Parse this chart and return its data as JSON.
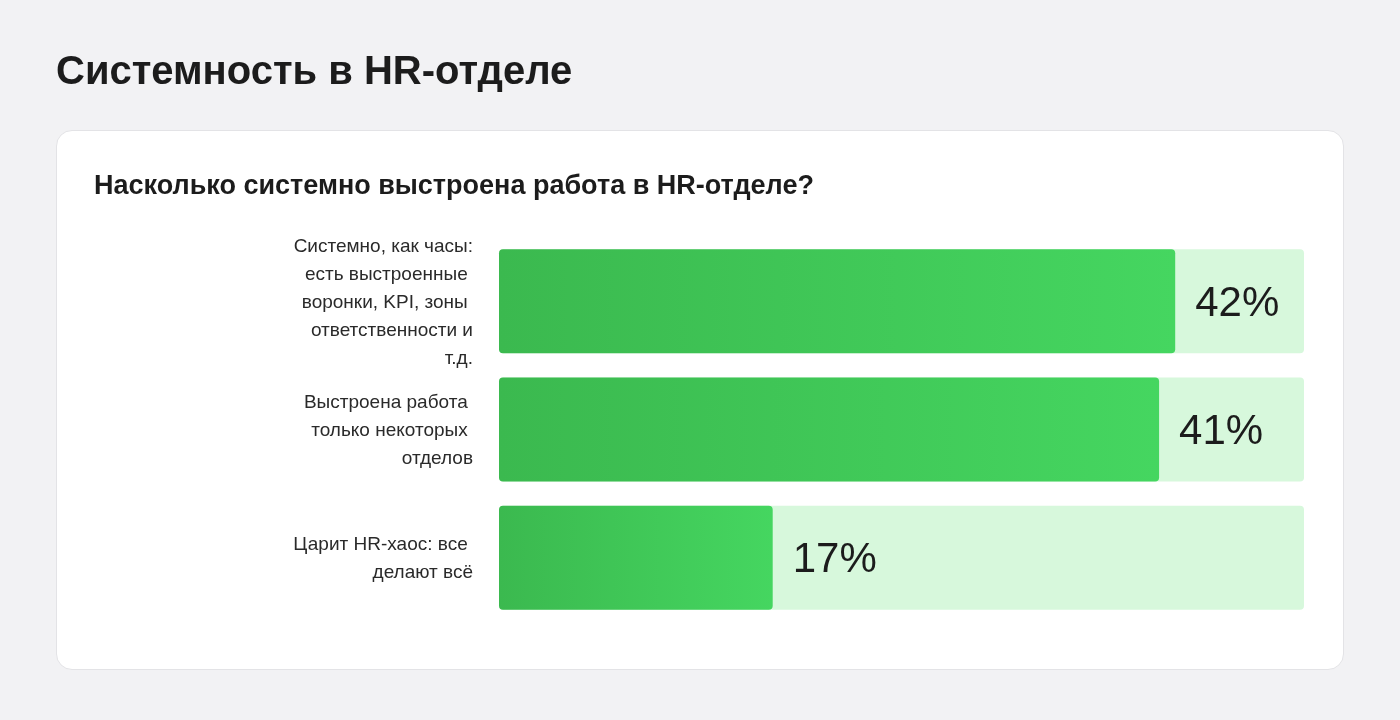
{
  "chart_data": {
    "type": "bar",
    "orientation": "horizontal",
    "title": "Системность в HR-отделе",
    "subtitle": "Насколько системно выстроена работа в HR-отделе?",
    "categories": [
      "Системно, как часы: есть выстроенные воронки, KPI, зоны ответственности и т.д.",
      "Выстроена работа только некоторых отделов",
      "Царит HR-хаос: все делают всё"
    ],
    "values": [
      42,
      41,
      17
    ],
    "color": "#45d660",
    "value_labels": [
      "42%",
      "41%",
      "17%"
    ]
  }
}
